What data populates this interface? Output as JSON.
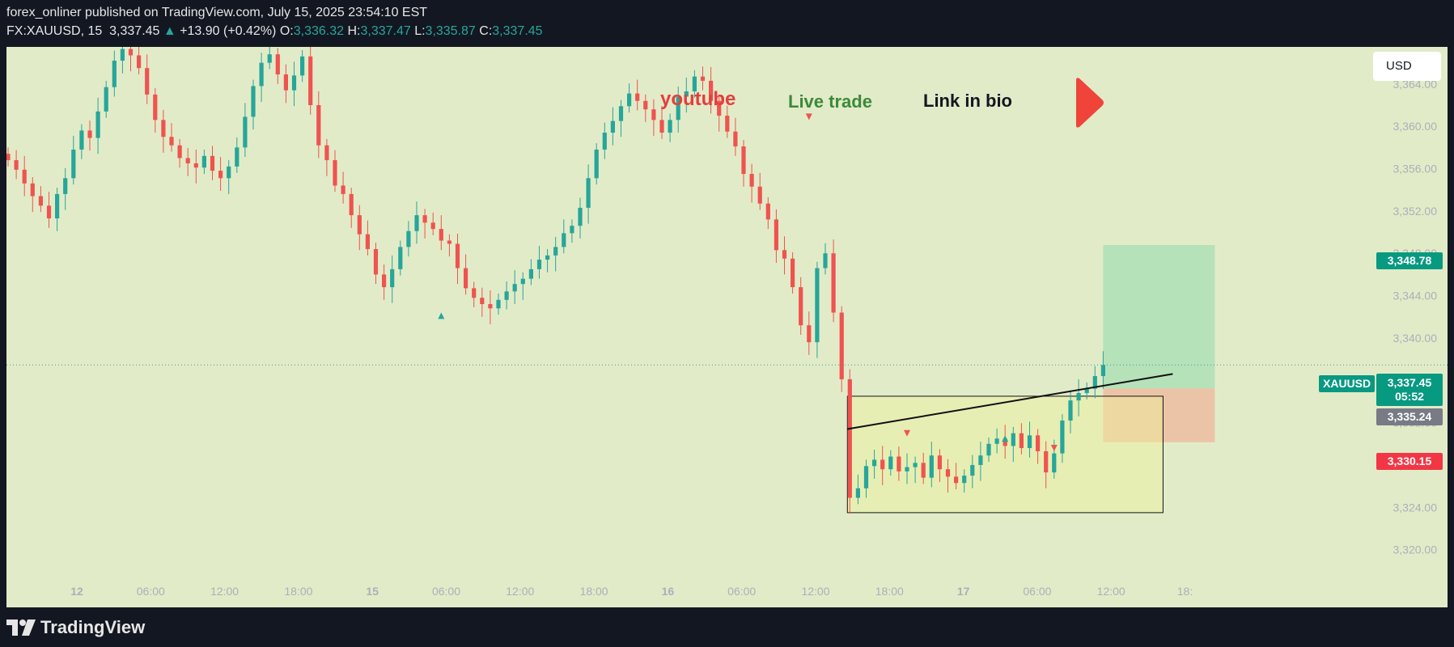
{
  "header": {
    "published": "forex_onliner published on TradingView.com, July 15, 2025 23:54:10 EST",
    "symbol": "FX:XAUUSD, 15",
    "last": "3,337.45",
    "change": "+13.90 (+0.42%)",
    "o_label": "O:",
    "o": "3,336.32",
    "h_label": "H:",
    "h": "3,337.47",
    "l_label": "L:",
    "l": "3,335.87",
    "c_label": "C:",
    "c": "3,337.45"
  },
  "currency_button": "USD",
  "annotations": {
    "youtube": "youtube",
    "live_trade": "Live trade",
    "link_in_bio": "Link in bio"
  },
  "tags": {
    "symbol": "XAUUSD",
    "price": "3,337.45",
    "countdown": "05:52",
    "target": "3,348.78",
    "entry": "3,335.24",
    "stop": "3,330.15"
  },
  "footer": {
    "brand": "TradingView"
  },
  "colors": {
    "up": "#26a69a",
    "down": "#ef5350",
    "background": "#e2ebc8",
    "youtube": "#e53e3e",
    "live_trade": "#3a8a3a",
    "play": "#f0433a"
  },
  "chart_data": {
    "type": "candlestick",
    "symbol": "FX:XAUUSD",
    "interval": "15",
    "y_ticks": [
      3320,
      3324,
      3328,
      3332,
      3336,
      3340,
      3344,
      3348,
      3352,
      3356,
      3360,
      3364
    ],
    "y_tick_labels": [
      "3,320.00",
      "3,324.00",
      "3,328.00",
      "3,332.00",
      "3,336.00",
      "3,340.00",
      "3,344.00",
      "3,348.00",
      "3,352.00",
      "3,356.00",
      "3,360.00",
      "3,364.00"
    ],
    "x_tick_labels": [
      "12",
      "06:00",
      "12:00",
      "18:00",
      "15",
      "06:00",
      "12:00",
      "18:00",
      "16",
      "06:00",
      "12:00",
      "18:00",
      "17",
      "06:00",
      "12:00",
      "18:"
    ],
    "x_tick_bold": [
      true,
      false,
      false,
      false,
      true,
      false,
      false,
      false,
      true,
      false,
      false,
      false,
      true,
      false,
      false,
      false
    ],
    "close_series": [
      3356.8,
      3355.9,
      3354.6,
      3353.4,
      3352.5,
      3351.3,
      3353.6,
      3355.1,
      3357.8,
      3359.6,
      3358.9,
      3361.4,
      3363.7,
      3366.2,
      3367.3,
      3366.7,
      3365.5,
      3363.0,
      3360.6,
      3359.0,
      3358.2,
      3357.0,
      3356.5,
      3356.1,
      3357.2,
      3355.8,
      3355.1,
      3356.2,
      3358.0,
      3360.9,
      3363.8,
      3366.0,
      3366.8,
      3364.9,
      3363.4,
      3364.8,
      3366.6,
      3362.0,
      3358.2,
      3356.8,
      3354.4,
      3353.6,
      3351.6,
      3349.8,
      3348.4,
      3346.0,
      3344.8,
      3346.5,
      3348.6,
      3350.1,
      3351.6,
      3350.9,
      3350.3,
      3349.2,
      3348.9,
      3346.6,
      3344.7,
      3343.8,
      3343.2,
      3342.8,
      3343.6,
      3344.4,
      3345.1,
      3345.6,
      3346.5,
      3347.4,
      3347.8,
      3348.6,
      3349.9,
      3350.6,
      3352.3,
      3355.1,
      3357.8,
      3359.4,
      3360.5,
      3361.9,
      3363.1,
      3362.4,
      3361.6,
      3360.6,
      3359.4,
      3360.6,
      3362.8,
      3363.3,
      3364.7,
      3364.3,
      3362.4,
      3361.0,
      3359.5,
      3358.1,
      3355.5,
      3354.3,
      3352.7,
      3351.2,
      3348.3,
      3347.5,
      3344.8,
      3341.2,
      3339.6,
      3346.6,
      3348.0,
      3342.4,
      3336.1,
      3324.9,
      3325.8,
      3327.9,
      3328.5,
      3327.6,
      3328.8,
      3327.4,
      3327.8,
      3328.2,
      3326.8,
      3328.9,
      3327.6,
      3326.9,
      3326.3,
      3327.0,
      3328.0,
      3328.9,
      3330.0,
      3330.5,
      3329.8,
      3331.0,
      3329.6,
      3330.8,
      3329.3,
      3327.3,
      3329.1,
      3332.2,
      3334.1,
      3334.8,
      3335.2,
      3336.4,
      3337.45
    ],
    "markers": [
      {
        "type": "sell-arrow",
        "price": 3360.9
      },
      {
        "type": "buy-arrow",
        "price": 3342.1
      },
      {
        "type": "sell-arrow",
        "price": 3331.0
      },
      {
        "type": "buy-arrow",
        "price": 3330.5
      },
      {
        "type": "sell-arrow",
        "price": 3329.6
      }
    ],
    "range_box": {
      "top": 3334.5,
      "bottom": 3323.5
    },
    "trendline": {
      "start_price": 3331.4,
      "end_price": 3336.6
    },
    "position": {
      "type": "long",
      "entry": 3335.24,
      "target": 3348.78,
      "stop": 3330.15
    },
    "last_price": 3337.45,
    "ylim": [
      3318.6,
      3367.5
    ]
  }
}
